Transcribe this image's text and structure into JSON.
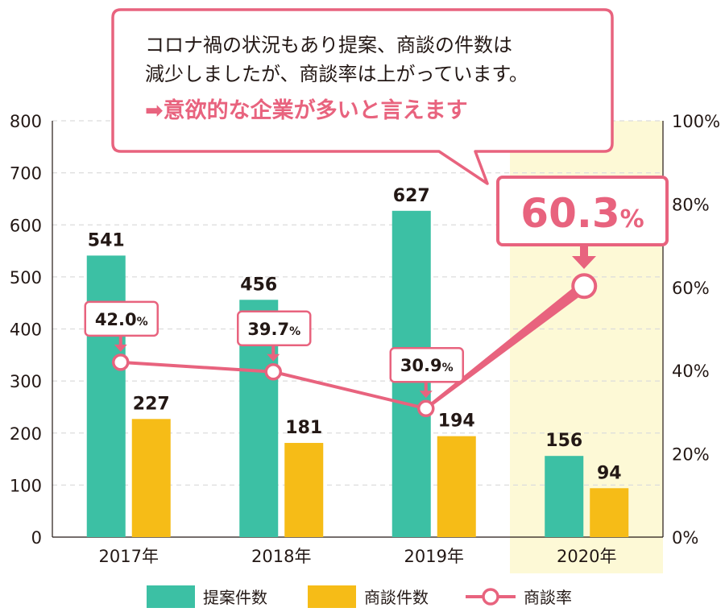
{
  "chart_data": {
    "type": "bar",
    "categories": [
      "2017年",
      "2018年",
      "2019年",
      "2020年"
    ],
    "series": [
      {
        "name": "提案件数",
        "kind": "bar",
        "axis": "left",
        "color": "#3cc0a4",
        "values": [
          541,
          456,
          627,
          156
        ]
      },
      {
        "name": "商談件数",
        "kind": "bar",
        "axis": "left",
        "color": "#f6bc17",
        "values": [
          227,
          181,
          194,
          94
        ]
      },
      {
        "name": "商談率",
        "kind": "line",
        "axis": "right",
        "color": "#e8637e",
        "values": [
          42.0,
          39.7,
          30.9,
          60.3
        ]
      }
    ],
    "data_labels": {
      "proposals": [
        "541",
        "456",
        "627",
        "156"
      ],
      "meetings": [
        "227",
        "181",
        "194",
        "94"
      ],
      "rate_values": [
        "42.0",
        "39.7",
        "30.9"
      ],
      "rate_unit": "%",
      "highlight_value": "60.3",
      "highlight_unit": "%"
    },
    "left_axis": {
      "ylim": [
        0,
        800
      ],
      "ticks": [
        "0",
        "100",
        "200",
        "300",
        "400",
        "500",
        "600",
        "700",
        "800"
      ]
    },
    "right_axis": {
      "ylim": [
        0,
        100
      ],
      "ticks": [
        "0%",
        "20%",
        "40%",
        "60%",
        "80%",
        "100%"
      ]
    },
    "highlight_category": "2020年",
    "grid": true,
    "legend_position": "bottom",
    "legend": [
      "提案件数",
      "商談件数",
      "商談率"
    ]
  },
  "callout": {
    "line1": "コロナ禍の状況もあり提案、商談の件数は",
    "line2": "減少しましたが、商談率は上がっています。",
    "arrow_glyph": "➡",
    "highlight": "意欲的な企業が多いと言えます"
  },
  "colors": {
    "proposals": "#3cc0a4",
    "meetings": "#f6bc17",
    "rate": "#e8637e",
    "highlight_band": "#fdf9d6",
    "text": "#231815"
  }
}
